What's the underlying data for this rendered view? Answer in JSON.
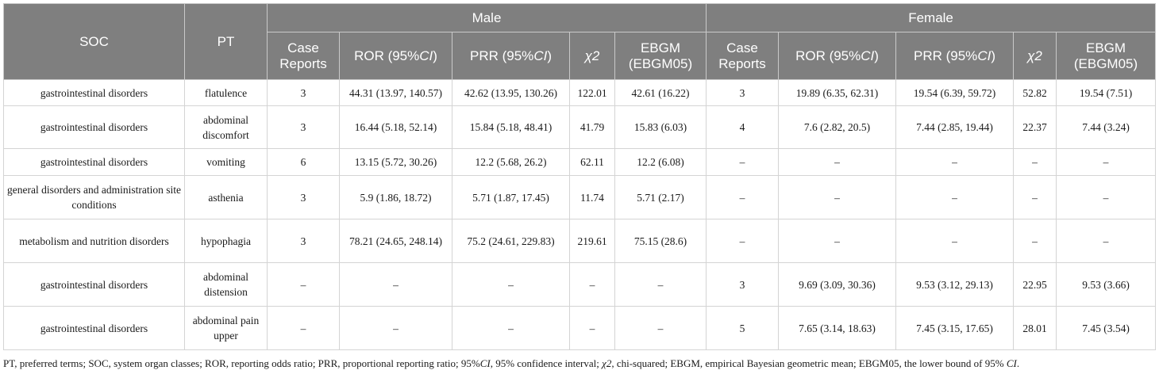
{
  "header": {
    "soc": "SOC",
    "pt": "PT",
    "male": "Male",
    "female": "Female",
    "case_reports": "Case Reports",
    "ror_prefix": "ROR (95%",
    "prr_prefix": "PRR (95%",
    "ci": "CI",
    "close_paren": ")",
    "chi2": "χ2",
    "ebgm": "EBGM (EBGM05)"
  },
  "rows": [
    {
      "soc": "gastrointestinal disorders",
      "pt": "flatulence",
      "male": {
        "case": "3",
        "ror": "44.31 (13.97, 140.57)",
        "prr": "42.62 (13.95, 130.26)",
        "chi2": "122.01",
        "ebgm": "42.61 (16.22)"
      },
      "female": {
        "case": "3",
        "ror": "19.89 (6.35, 62.31)",
        "prr": "19.54 (6.39, 59.72)",
        "chi2": "52.82",
        "ebgm": "19.54 (7.51)"
      }
    },
    {
      "soc": "gastrointestinal disorders",
      "pt": "abdominal discomfort",
      "male": {
        "case": "3",
        "ror": "16.44 (5.18, 52.14)",
        "prr": "15.84 (5.18, 48.41)",
        "chi2": "41.79",
        "ebgm": "15.83 (6.03)"
      },
      "female": {
        "case": "4",
        "ror": "7.6 (2.82, 20.5)",
        "prr": "7.44 (2.85, 19.44)",
        "chi2": "22.37",
        "ebgm": "7.44 (3.24)"
      }
    },
    {
      "soc": "gastrointestinal disorders",
      "pt": "vomiting",
      "male": {
        "case": "6",
        "ror": "13.15 (5.72, 30.26)",
        "prr": "12.2 (5.68, 26.2)",
        "chi2": "62.11",
        "ebgm": "12.2 (6.08)"
      },
      "female": {
        "case": "–",
        "ror": "–",
        "prr": "–",
        "chi2": "–",
        "ebgm": "–"
      }
    },
    {
      "soc": "general disorders and administration site conditions",
      "pt": "asthenia",
      "male": {
        "case": "3",
        "ror": "5.9 (1.86, 18.72)",
        "prr": "5.71 (1.87, 17.45)",
        "chi2": "11.74",
        "ebgm": "5.71 (2.17)"
      },
      "female": {
        "case": "–",
        "ror": "–",
        "prr": "–",
        "chi2": "–",
        "ebgm": "–"
      }
    },
    {
      "soc": "metabolism and nutrition disorders",
      "pt": "hypophagia",
      "male": {
        "case": "3",
        "ror": "78.21 (24.65, 248.14)",
        "prr": "75.2 (24.61, 229.83)",
        "chi2": "219.61",
        "ebgm": "75.15 (28.6)"
      },
      "female": {
        "case": "–",
        "ror": "–",
        "prr": "–",
        "chi2": "–",
        "ebgm": "–"
      }
    },
    {
      "soc": "gastrointestinal disorders",
      "pt": "abdominal distension",
      "male": {
        "case": "–",
        "ror": "–",
        "prr": "–",
        "chi2": "–",
        "ebgm": "–"
      },
      "female": {
        "case": "3",
        "ror": "9.69 (3.09, 30.36)",
        "prr": "9.53 (3.12, 29.13)",
        "chi2": "22.95",
        "ebgm": "9.53 (3.66)"
      }
    },
    {
      "soc": "gastrointestinal disorders",
      "pt": "abdominal pain upper",
      "male": {
        "case": "–",
        "ror": "–",
        "prr": "–",
        "chi2": "–",
        "ebgm": "–"
      },
      "female": {
        "case": "5",
        "ror": "7.65 (3.14, 18.63)",
        "prr": "7.45 (3.15, 17.65)",
        "chi2": "28.01",
        "ebgm": "7.45 (3.54)"
      }
    }
  ],
  "footnote": {
    "part1": "PT, preferred terms; SOC, system organ classes; ROR, reporting odds ratio; PRR, proportional reporting ratio; 95%",
    "ci1": "CI",
    "part2": ", 95% confidence interval; ",
    "chi2": "χ2",
    "part3": ", chi-squared; EBGM, empirical Bayesian geometric mean; EBGM05, the lower bound of 95% ",
    "ci2": "CI",
    "part4": "."
  }
}
